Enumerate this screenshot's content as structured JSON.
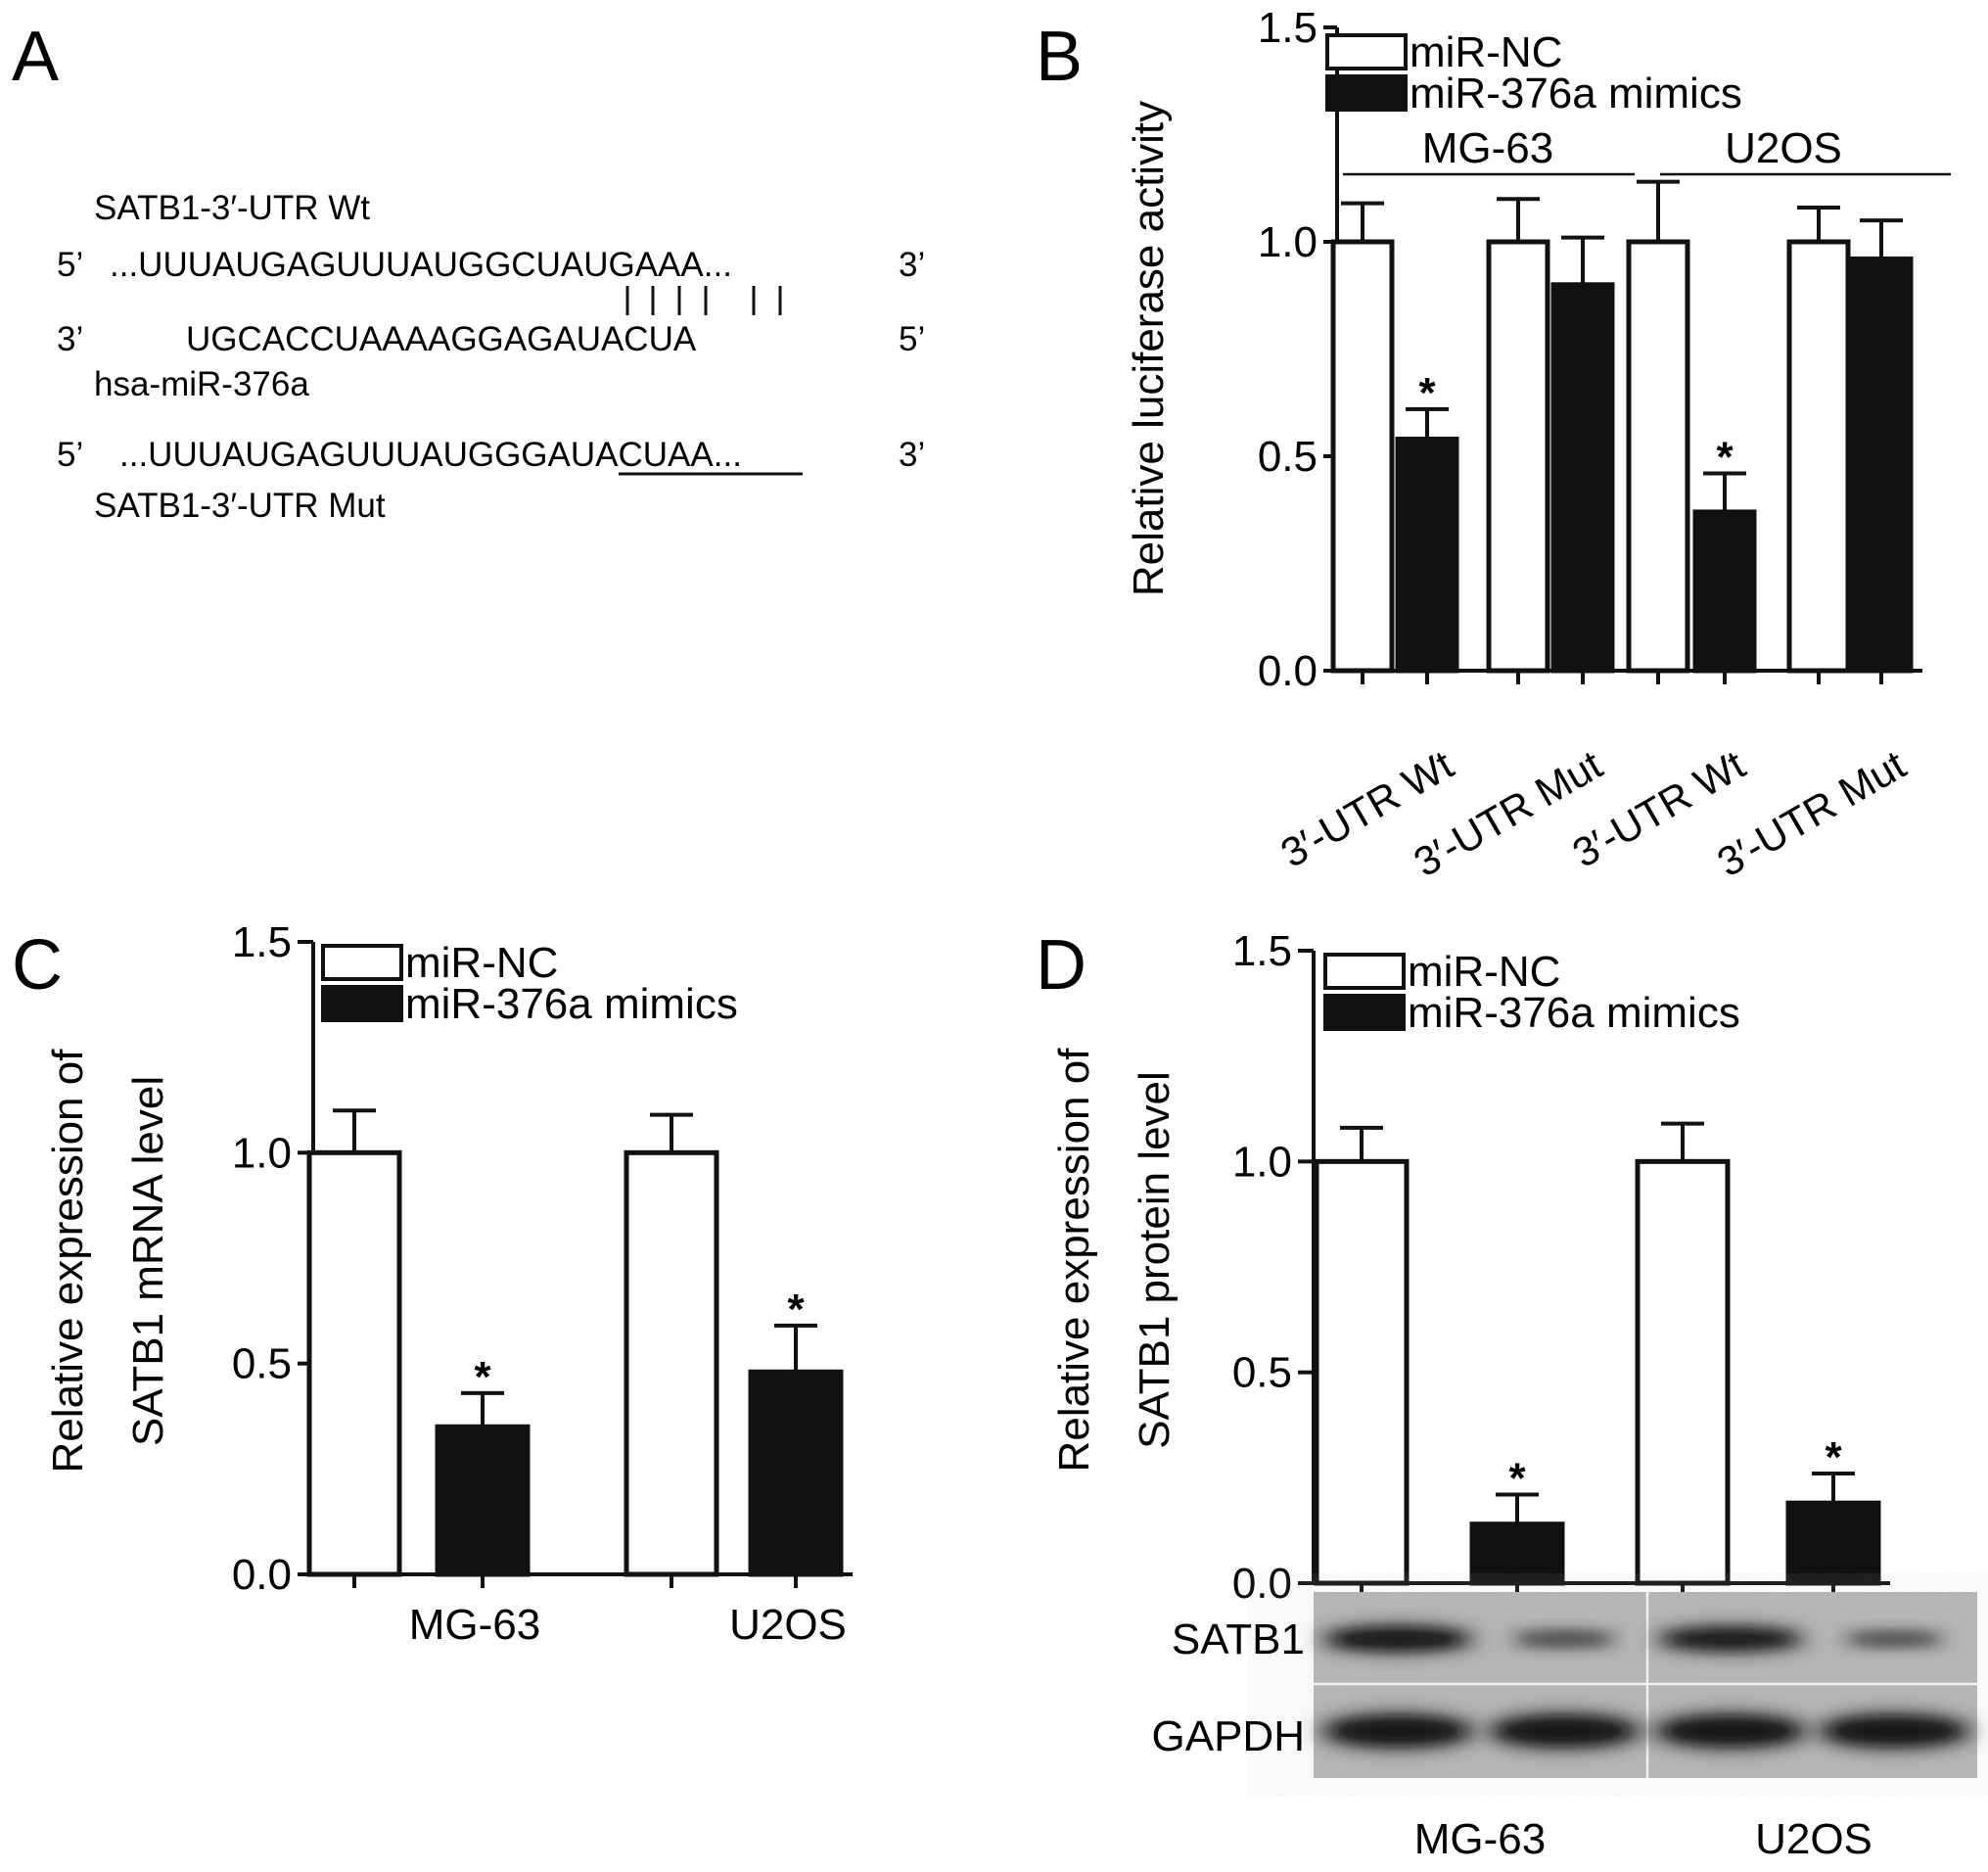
{
  "panel_a": {
    "label": "A",
    "wt_title": "SATB1-3′-UTR Wt",
    "wt_5prime": "5’",
    "wt_seq": "...UUUAUGAGUUUAUGGCUAUGAAA...",
    "wt_3prime": "3’",
    "mir_3prime": "3’",
    "mir_seq": "UGCACCUAAAAGGAGAUACUA",
    "mir_5prime": "5’",
    "mir_name": "hsa-miR-376a",
    "mut_5prime": "5’",
    "mut_seq": "...UUUAUGAGUUUAUGGGAUACUAA...",
    "mut_3prime": "3’",
    "mut_title": "SATB1-3′-UTR Mut"
  },
  "panel_labels": {
    "b": "B",
    "c": "C",
    "d": "D"
  },
  "blot": {
    "rows": [
      "SATB1",
      "GAPDH"
    ],
    "lanes_groups": [
      "MG-63",
      "U2OS"
    ],
    "satb1_band_intensity": [
      0.95,
      0.35,
      0.9,
      0.3
    ],
    "gapdh_band_intensity": [
      0.95,
      0.95,
      0.95,
      0.95
    ]
  },
  "colors": {
    "miR-NC": "#ffffff",
    "miR-376a mimics": "#111111",
    "outline": "#111111"
  },
  "chart_data": [
    {
      "id": "B",
      "type": "bar",
      "ylabel": "Relative luciferase activity",
      "ylim": [
        0,
        1.5
      ],
      "yticks": [
        "0.0",
        "0.5",
        "1.0",
        "1.5"
      ],
      "categories": [
        "3′-UTR Wt",
        "3′-UTR Mut",
        "3′-UTR Wt",
        "3′-UTR Mut"
      ],
      "groups": [
        "MG-63",
        "U2OS"
      ],
      "legend": {
        "position": "top-left",
        "entries": [
          "miR-NC",
          "miR-376a mimics"
        ]
      },
      "series": [
        {
          "name": "miR-NC",
          "values": [
            1.0,
            1.0,
            1.0,
            1.0
          ],
          "errors": [
            0.09,
            0.1,
            0.14,
            0.08
          ]
        },
        {
          "name": "miR-376a mimics",
          "values": [
            0.54,
            0.9,
            0.37,
            0.96
          ],
          "errors": [
            0.07,
            0.11,
            0.09,
            0.09
          ]
        }
      ],
      "significance": {
        "symbol": "*",
        "marked": [
          [
            1,
            0
          ],
          [
            1,
            2
          ]
        ]
      }
    },
    {
      "id": "C",
      "type": "bar",
      "ylabel": "Relative expression of SATB1 mRNA level",
      "ylabel_lines": [
        "Relative expression of",
        "SATB1 mRNA level"
      ],
      "ylim": [
        0,
        1.5
      ],
      "yticks": [
        "0.0",
        "0.5",
        "1.0",
        "1.5"
      ],
      "categories": [
        "MG-63",
        "U2OS"
      ],
      "legend": {
        "position": "top-left",
        "entries": [
          "miR-NC",
          "miR-376a mimics"
        ]
      },
      "series": [
        {
          "name": "miR-NC",
          "values": [
            1.0,
            1.0
          ],
          "errors": [
            0.1,
            0.09
          ]
        },
        {
          "name": "miR-376a mimics",
          "values": [
            0.35,
            0.48
          ],
          "errors": [
            0.08,
            0.11
          ]
        }
      ],
      "significance": {
        "symbol": "*",
        "marked": [
          [
            1,
            0
          ],
          [
            1,
            1
          ]
        ]
      }
    },
    {
      "id": "D",
      "type": "bar",
      "ylabel": "Relative expression of SATB1 protein level",
      "ylabel_lines": [
        "Relative expression of",
        "SATB1 protein level"
      ],
      "ylim": [
        0,
        1.5
      ],
      "yticks": [
        "0.0",
        "0.5",
        "1.0",
        "1.5"
      ],
      "categories": [
        "MG-63",
        "U2OS"
      ],
      "legend": {
        "position": "top-left",
        "entries": [
          "miR-NC",
          "miR-376a mimics"
        ]
      },
      "series": [
        {
          "name": "miR-NC",
          "values": [
            1.0,
            1.0
          ],
          "errors": [
            0.08,
            0.09
          ]
        },
        {
          "name": "miR-376a mimics",
          "values": [
            0.14,
            0.19
          ],
          "errors": [
            0.07,
            0.07
          ]
        }
      ],
      "significance": {
        "symbol": "*",
        "marked": [
          [
            1,
            0
          ],
          [
            1,
            1
          ]
        ]
      }
    }
  ]
}
